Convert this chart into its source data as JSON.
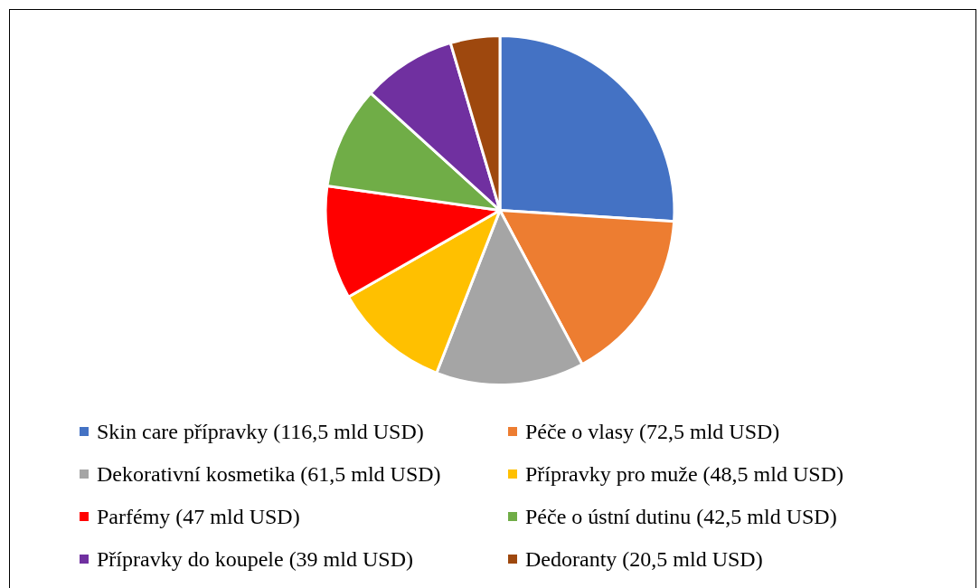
{
  "chart_data": {
    "type": "pie",
    "categories": [
      "Skin care přípravky (116,5 mld USD)",
      "Péče o vlasy (72,5 mld USD)",
      "Dekorativní kosmetika (61,5 mld USD)",
      "Přípravky pro muže (48,5 mld USD)",
      "Parfémy (47 mld USD)",
      "Péče o ústní dutinu (42,5 mld USD)",
      "Přípravky do koupele (39 mld USD)",
      "Dedoranty (20,5 mld USD)"
    ],
    "values": [
      116.5,
      72.5,
      61.5,
      48.5,
      47,
      42.5,
      39,
      20.5
    ],
    "colors": [
      "#4472c4",
      "#ed7d31",
      "#a5a5a5",
      "#ffc000",
      "#ff0000",
      "#70ad47",
      "#7030a0",
      "#9e480e"
    ],
    "legend": "bottom"
  }
}
